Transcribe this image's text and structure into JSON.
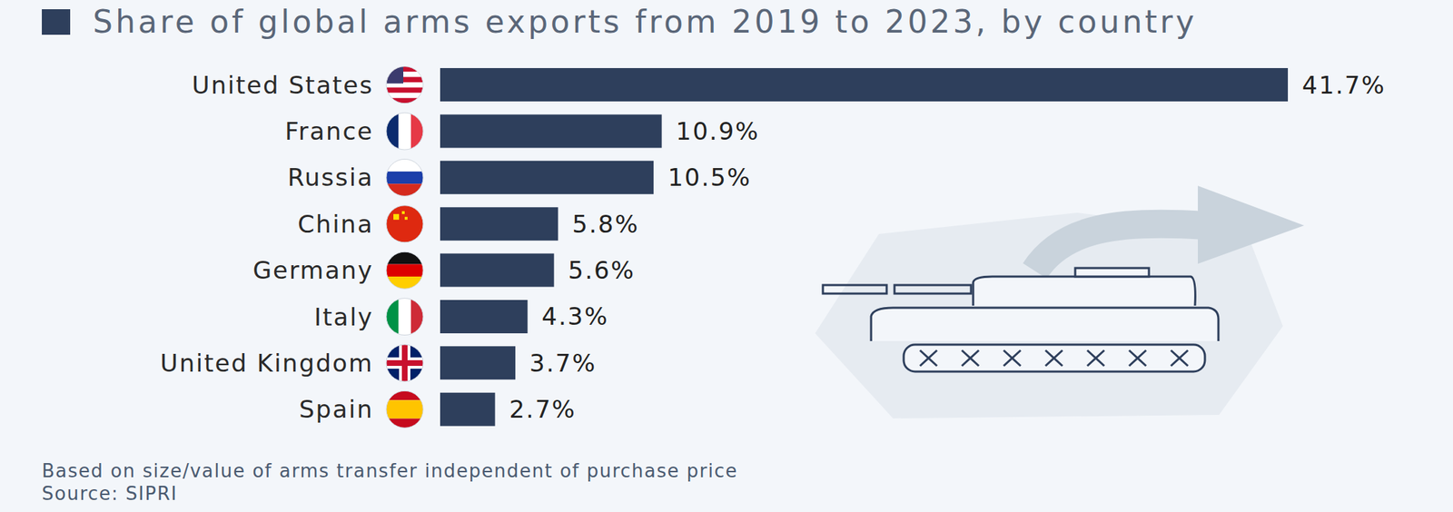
{
  "chart_data": {
    "type": "bar",
    "orientation": "horizontal",
    "title": "Share of global arms exports from 2019 to 2023, by country",
    "categories": [
      "United States",
      "France",
      "Russia",
      "China",
      "Germany",
      "Italy",
      "United Kingdom",
      "Spain"
    ],
    "values": [
      41.7,
      10.9,
      10.5,
      5.8,
      5.6,
      4.3,
      3.7,
      2.7
    ],
    "value_labels": [
      "41.7%",
      "10.9%",
      "10.5%",
      "5.8%",
      "5.6%",
      "4.3%",
      "3.7%",
      "2.7%"
    ],
    "color": "#2e3f5c",
    "data_labels": true,
    "tick_labels": "y",
    "grid": false,
    "footnote": "Based on size/value of arms transfer independent of purchase price",
    "source": "Source: SIPRI"
  }
}
